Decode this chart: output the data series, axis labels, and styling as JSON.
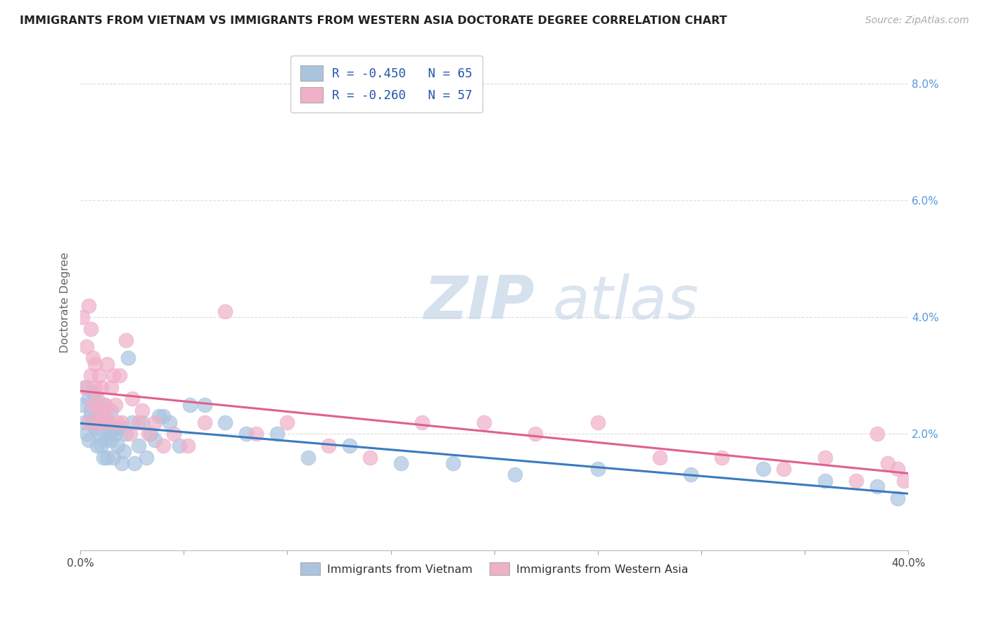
{
  "title": "IMMIGRANTS FROM VIETNAM VS IMMIGRANTS FROM WESTERN ASIA DOCTORATE DEGREE CORRELATION CHART",
  "source": "Source: ZipAtlas.com",
  "ylabel": "Doctorate Degree",
  "ytick_values": [
    0.0,
    0.02,
    0.04,
    0.06,
    0.08
  ],
  "ytick_labels": [
    "",
    "2.0%",
    "4.0%",
    "6.0%",
    "8.0%"
  ],
  "xtick_values": [
    0,
    0.05,
    0.1,
    0.15,
    0.2,
    0.25,
    0.3,
    0.35,
    0.4
  ],
  "xtick_labels": [
    "0.0%",
    "",
    "",
    "",
    "",
    "",
    "",
    "",
    "40.0%"
  ],
  "xlim": [
    0,
    0.4
  ],
  "ylim": [
    0,
    0.085
  ],
  "series1_label": "R = -0.450   N = 65",
  "series1_color": "#aac4e0",
  "series1_line_color": "#3a7bbf",
  "series1_R": -0.45,
  "series1_N": 65,
  "series2_label": "R = -0.260   N = 57",
  "series2_color": "#f0b0c8",
  "series2_line_color": "#e06090",
  "series2_R": -0.26,
  "series2_N": 57,
  "legend_label1": "Immigrants from Vietnam",
  "legend_label2": "Immigrants from Western Asia",
  "watermark_zip": "ZIP",
  "watermark_atlas": "atlas",
  "vietnam_x": [
    0.001,
    0.002,
    0.003,
    0.003,
    0.004,
    0.004,
    0.005,
    0.005,
    0.006,
    0.006,
    0.007,
    0.007,
    0.008,
    0.008,
    0.008,
    0.009,
    0.009,
    0.01,
    0.01,
    0.01,
    0.011,
    0.011,
    0.012,
    0.012,
    0.013,
    0.013,
    0.014,
    0.015,
    0.015,
    0.016,
    0.016,
    0.017,
    0.018,
    0.019,
    0.02,
    0.021,
    0.022,
    0.023,
    0.025,
    0.026,
    0.028,
    0.03,
    0.032,
    0.034,
    0.036,
    0.038,
    0.04,
    0.043,
    0.048,
    0.053,
    0.06,
    0.07,
    0.08,
    0.095,
    0.11,
    0.13,
    0.155,
    0.18,
    0.21,
    0.25,
    0.295,
    0.33,
    0.36,
    0.385,
    0.395
  ],
  "vietnam_y": [
    0.025,
    0.022,
    0.028,
    0.02,
    0.026,
    0.019,
    0.024,
    0.023,
    0.027,
    0.022,
    0.026,
    0.021,
    0.025,
    0.022,
    0.018,
    0.023,
    0.02,
    0.024,
    0.022,
    0.018,
    0.022,
    0.016,
    0.025,
    0.019,
    0.022,
    0.016,
    0.02,
    0.024,
    0.019,
    0.021,
    0.016,
    0.02,
    0.018,
    0.021,
    0.015,
    0.017,
    0.02,
    0.033,
    0.022,
    0.015,
    0.018,
    0.022,
    0.016,
    0.02,
    0.019,
    0.023,
    0.023,
    0.022,
    0.018,
    0.025,
    0.025,
    0.022,
    0.02,
    0.02,
    0.016,
    0.018,
    0.015,
    0.015,
    0.013,
    0.014,
    0.013,
    0.014,
    0.012,
    0.011,
    0.009
  ],
  "western_asia_x": [
    0.001,
    0.002,
    0.003,
    0.004,
    0.004,
    0.005,
    0.005,
    0.006,
    0.006,
    0.007,
    0.007,
    0.008,
    0.008,
    0.009,
    0.009,
    0.01,
    0.01,
    0.011,
    0.012,
    0.013,
    0.013,
    0.014,
    0.015,
    0.016,
    0.017,
    0.018,
    0.019,
    0.02,
    0.022,
    0.024,
    0.025,
    0.028,
    0.03,
    0.033,
    0.036,
    0.04,
    0.045,
    0.052,
    0.06,
    0.07,
    0.085,
    0.1,
    0.12,
    0.14,
    0.165,
    0.195,
    0.22,
    0.25,
    0.28,
    0.31,
    0.34,
    0.36,
    0.375,
    0.385,
    0.39,
    0.395,
    0.398
  ],
  "western_asia_y": [
    0.04,
    0.028,
    0.035,
    0.042,
    0.022,
    0.03,
    0.038,
    0.033,
    0.025,
    0.032,
    0.028,
    0.026,
    0.022,
    0.03,
    0.024,
    0.028,
    0.022,
    0.023,
    0.025,
    0.032,
    0.024,
    0.022,
    0.028,
    0.03,
    0.025,
    0.022,
    0.03,
    0.022,
    0.036,
    0.02,
    0.026,
    0.022,
    0.024,
    0.02,
    0.022,
    0.018,
    0.02,
    0.018,
    0.022,
    0.041,
    0.02,
    0.022,
    0.018,
    0.016,
    0.022,
    0.022,
    0.02,
    0.022,
    0.016,
    0.016,
    0.014,
    0.016,
    0.012,
    0.02,
    0.015,
    0.014,
    0.012
  ]
}
